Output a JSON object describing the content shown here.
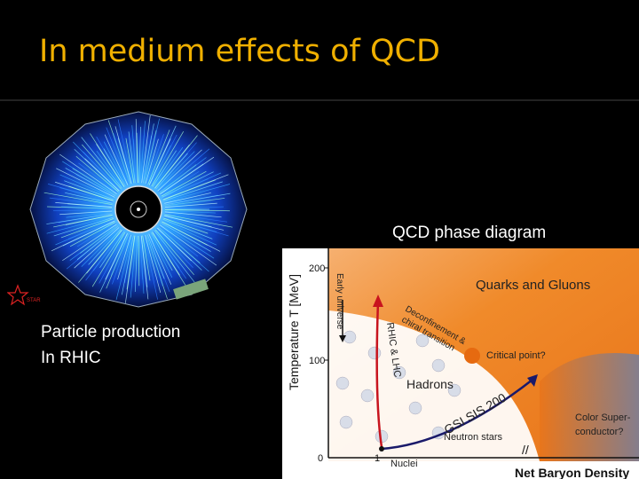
{
  "slide": {
    "title": "In medium effects of QCD",
    "left_caption_line1": "Particle production",
    "left_caption_line2": "In RHIC",
    "right_caption": "QCD phase diagram",
    "experiment_logo_text": "STAR"
  },
  "phase_diagram": {
    "y_axis_label": "Temperature T [MeV]",
    "y_ticks": [
      "200",
      "100",
      "0"
    ],
    "x_axis_label": "Net Baryon Density",
    "x_tick": "1",
    "regions": {
      "qgp": "Quarks and Gluons",
      "hadrons": "Hadrons",
      "color_superconductor_line1": "Color Super-",
      "color_superconductor_line2": "conductor?"
    },
    "annotations": {
      "early_universe": "Early universe",
      "rhic_lhc": "RHIC & LHC",
      "deconfinement_line1": "Deconfinement &",
      "deconfinement_line2": "chiral transition",
      "critical_point": "Critical point?",
      "gsi": "GSI SIS 200",
      "neutron_stars": "Neutron stars",
      "nuclei": "Nuclei"
    },
    "colors": {
      "qgp_orange": "#f07f1e",
      "critical_point": "#e66a10",
      "rhic_arrow": "#c8141e",
      "gsi_arrow": "#1a1a6a"
    }
  }
}
